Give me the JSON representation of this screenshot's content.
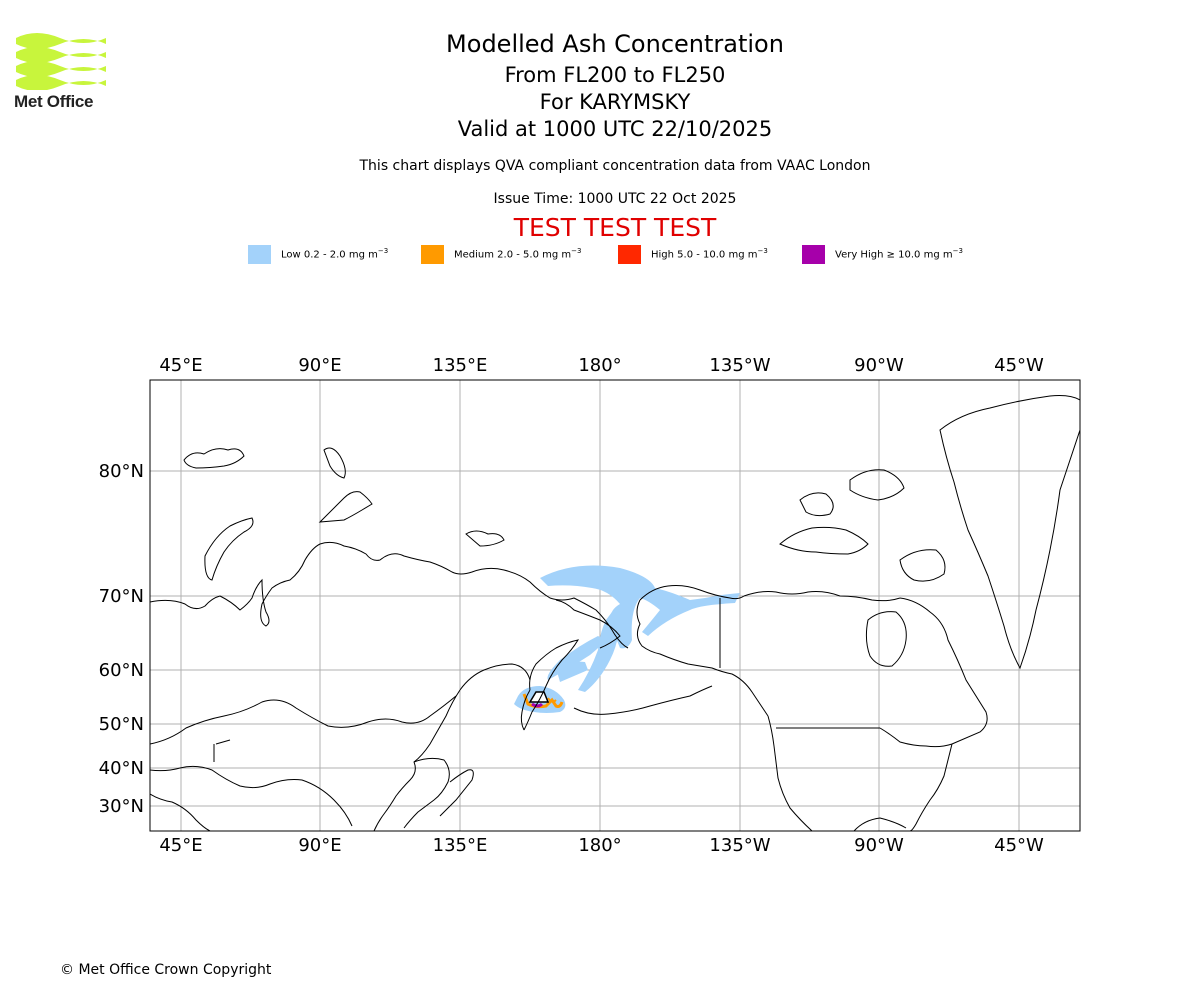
{
  "header": {
    "logo_text": "Met Office",
    "title": "Modelled Ash Concentration",
    "levels": "From FL200 to FL250",
    "volcano": "For KARYMSKY",
    "valid": "Valid at 1000 UTC 22/10/2025",
    "description": "This chart displays QVA compliant concentration data from VAAC London",
    "issue_time": "Issue Time: 1000 UTC 22 Oct 2025",
    "test_banner": "TEST TEST TEST"
  },
  "legend": [
    {
      "label": "Low 0.2 - 2.0 mg m",
      "sup": "−3",
      "color": "#a3d2fa"
    },
    {
      "label": "Medium 2.0 - 5.0 mg m",
      "sup": "−3",
      "color": "#ff9a00"
    },
    {
      "label": "High 5.0 - 10.0 mg m",
      "sup": "−3",
      "color": "#ff2800"
    },
    {
      "label": "Very High  ≥  10.0 mg m",
      "sup": "−3",
      "color": "#a600aa"
    }
  ],
  "map": {
    "lon_labels": [
      "45°E",
      "90°E",
      "135°E",
      "180°",
      "135°W",
      "90°W",
      "45°W"
    ],
    "lat_labels": [
      "80°N",
      "70°N",
      "60°N",
      "50°N",
      "40°N",
      "30°N"
    ],
    "gridlines": true
  },
  "footer": {
    "copyright": "© Met Office Crown Copyright"
  }
}
